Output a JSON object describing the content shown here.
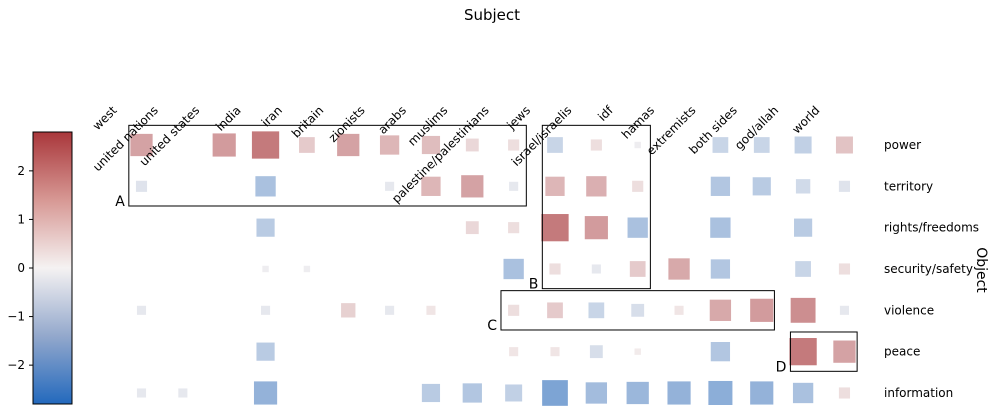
{
  "chart_data": {
    "type": "heatmap",
    "title": "Subject",
    "xlabel": "Subject",
    "ylabel": "Object",
    "x_categories": [
      "west",
      "united nations",
      "united states",
      "india",
      "iran",
      "britain",
      "zionists",
      "arabs",
      "muslims",
      "palestine/palestinians",
      "jews",
      "israel/israelis",
      "idf",
      "hamas",
      "extremists",
      "both sides",
      "god/allah",
      "world"
    ],
    "y_categories": [
      "power",
      "territory",
      "rights/freedoms",
      "security/safety",
      "violence",
      "peace",
      "information"
    ],
    "encoding": "square size and color both encode the value; blank cells have no value",
    "colorbar": {
      "colormap": "blue-white-red (vlag)",
      "min": -2.8,
      "max": 2.8,
      "ticks": [
        2,
        1,
        0,
        -1,
        -2
      ],
      "tick_labels": [
        "2",
        "1",
        "0",
        "−1",
        "−2"
      ]
    },
    "cells": [
      {
        "x": "west",
        "y": "power",
        "value": 1.2
      },
      {
        "x": "united states",
        "y": "power",
        "value": 1.3
      },
      {
        "x": "india",
        "y": "power",
        "value": 1.8
      },
      {
        "x": "iran",
        "y": "power",
        "value": 0.6
      },
      {
        "x": "britain",
        "y": "power",
        "value": 1.2
      },
      {
        "x": "zionists",
        "y": "power",
        "value": 0.9
      },
      {
        "x": "arabs",
        "y": "power",
        "value": 0.8
      },
      {
        "x": "muslims",
        "y": "power",
        "value": 0.4
      },
      {
        "x": "palestine/palestinians",
        "y": "power",
        "value": 0.3
      },
      {
        "x": "jews",
        "y": "power",
        "value": -0.6
      },
      {
        "x": "israel/israelis",
        "y": "power",
        "value": 0.3
      },
      {
        "x": "idf",
        "y": "power",
        "value": -0.1
      },
      {
        "x": "extremists",
        "y": "power",
        "value": -0.6
      },
      {
        "x": "both sides",
        "y": "power",
        "value": -0.6
      },
      {
        "x": "god/allah",
        "y": "power",
        "value": -0.7
      },
      {
        "x": "world",
        "y": "power",
        "value": 0.7
      },
      {
        "x": "west",
        "y": "territory",
        "value": -0.3
      },
      {
        "x": "india",
        "y": "territory",
        "value": -1.0
      },
      {
        "x": "zionists",
        "y": "territory",
        "value": -0.2
      },
      {
        "x": "arabs",
        "y": "territory",
        "value": 0.9
      },
      {
        "x": "muslims",
        "y": "territory",
        "value": 1.2
      },
      {
        "x": "palestine/palestinians",
        "y": "territory",
        "value": -0.2
      },
      {
        "x": "jews",
        "y": "territory",
        "value": 0.9
      },
      {
        "x": "israel/israelis",
        "y": "territory",
        "value": 1.0
      },
      {
        "x": "idf",
        "y": "territory",
        "value": 0.3
      },
      {
        "x": "extremists",
        "y": "territory",
        "value": -0.9
      },
      {
        "x": "both sides",
        "y": "territory",
        "value": -0.8
      },
      {
        "x": "god/allah",
        "y": "territory",
        "value": -0.5
      },
      {
        "x": "world",
        "y": "territory",
        "value": -0.3
      },
      {
        "x": "india",
        "y": "rights/freedoms",
        "value": -0.8
      },
      {
        "x": "muslims",
        "y": "rights/freedoms",
        "value": 0.4
      },
      {
        "x": "palestine/palestinians",
        "y": "rights/freedoms",
        "value": 0.3
      },
      {
        "x": "jews",
        "y": "rights/freedoms",
        "value": 1.8
      },
      {
        "x": "israel/israelis",
        "y": "rights/freedoms",
        "value": 1.3
      },
      {
        "x": "idf",
        "y": "rights/freedoms",
        "value": -1.0
      },
      {
        "x": "extremists",
        "y": "rights/freedoms",
        "value": -1.0
      },
      {
        "x": "god/allah",
        "y": "rights/freedoms",
        "value": -0.8
      },
      {
        "x": "india",
        "y": "security/safety",
        "value": -0.1
      },
      {
        "x": "iran",
        "y": "security/safety",
        "value": -0.1
      },
      {
        "x": "palestine/palestinians",
        "y": "security/safety",
        "value": -1.0
      },
      {
        "x": "jews",
        "y": "security/safety",
        "value": 0.3
      },
      {
        "x": "israel/israelis",
        "y": "security/safety",
        "value": -0.2
      },
      {
        "x": "idf",
        "y": "security/safety",
        "value": 0.6
      },
      {
        "x": "hamas",
        "y": "security/safety",
        "value": 1.1
      },
      {
        "x": "extremists",
        "y": "security/safety",
        "value": -0.9
      },
      {
        "x": "god/allah",
        "y": "security/safety",
        "value": -0.6
      },
      {
        "x": "world",
        "y": "security/safety",
        "value": 0.3
      },
      {
        "x": "west",
        "y": "violence",
        "value": -0.2
      },
      {
        "x": "india",
        "y": "violence",
        "value": -0.2
      },
      {
        "x": "britain",
        "y": "violence",
        "value": 0.5
      },
      {
        "x": "zionists",
        "y": "violence",
        "value": -0.2
      },
      {
        "x": "arabs",
        "y": "violence",
        "value": 0.2
      },
      {
        "x": "palestine/palestinians",
        "y": "violence",
        "value": 0.3
      },
      {
        "x": "jews",
        "y": "violence",
        "value": 0.6
      },
      {
        "x": "israel/israelis",
        "y": "violence",
        "value": -0.6
      },
      {
        "x": "idf",
        "y": "violence",
        "value": -0.4
      },
      {
        "x": "hamas",
        "y": "violence",
        "value": 0.2
      },
      {
        "x": "extremists",
        "y": "violence",
        "value": 1.1
      },
      {
        "x": "both sides",
        "y": "violence",
        "value": 1.3
      },
      {
        "x": "god/allah",
        "y": "violence",
        "value": 1.5
      },
      {
        "x": "world",
        "y": "violence",
        "value": -0.2
      },
      {
        "x": "both sides",
        "y": "information",
        "value": -1.3
      },
      {
        "x": "india",
        "y": "peace",
        "value": -0.8
      },
      {
        "x": "palestine/palestinians",
        "y": "peace",
        "value": 0.2
      },
      {
        "x": "jews",
        "y": "peace",
        "value": 0.2
      },
      {
        "x": "israel/israelis",
        "y": "peace",
        "value": -0.4
      },
      {
        "x": "idf",
        "y": "peace",
        "value": 0.1
      },
      {
        "x": "extremists",
        "y": "peace",
        "value": -0.9
      },
      {
        "x": "god/allah",
        "y": "peace",
        "value": 1.8
      },
      {
        "x": "world",
        "y": "peace",
        "value": 1.2
      },
      {
        "x": "west",
        "y": "information",
        "value": -0.2
      },
      {
        "x": "united nations",
        "y": "information",
        "value": -0.2
      },
      {
        "x": "india",
        "y": "information",
        "value": -1.3
      },
      {
        "x": "arabs",
        "y": "information",
        "value": -0.8
      },
      {
        "x": "muslims",
        "y": "information",
        "value": -0.9
      },
      {
        "x": "palestine/palestinians",
        "y": "information",
        "value": -0.7
      },
      {
        "x": "jews",
        "y": "information",
        "value": -1.6
      },
      {
        "x": "israel/israelis",
        "y": "information",
        "value": -1.1
      },
      {
        "x": "idf",
        "y": "information",
        "value": -1.2
      },
      {
        "x": "hamas",
        "y": "information",
        "value": -1.3
      },
      {
        "x": "extremists",
        "y": "information",
        "value": -1.4
      },
      {
        "x": "god/allah",
        "y": "information",
        "value": -1.0
      },
      {
        "x": "world",
        "y": "information",
        "value": 0.3
      }
    ],
    "annotations": [
      {
        "label": "A",
        "x_from": "west",
        "x_to": "palestine/palestinians",
        "y_from": "power",
        "y_to": "territory"
      },
      {
        "label": "B",
        "x_from": "jews",
        "x_to": "idf",
        "y_from": "power",
        "y_to": "security/safety"
      },
      {
        "label": "C",
        "x_from": "palestine/palestinians",
        "x_to": "both sides",
        "y_from": "violence",
        "y_to": "violence"
      },
      {
        "label": "D",
        "x_from": "god/allah",
        "x_to": "world",
        "y_from": "peace",
        "y_to": "peace"
      }
    ]
  }
}
